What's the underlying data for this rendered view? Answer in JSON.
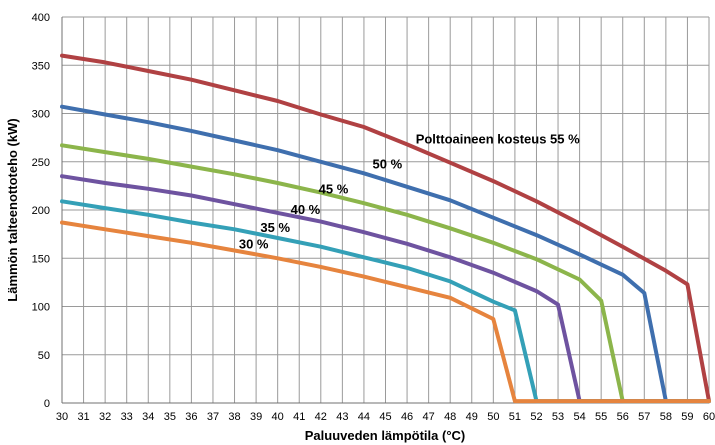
{
  "chart_data": {
    "type": "line",
    "xlabel": "Paluuveden lämpötila (°C)",
    "ylabel": "Lämmön talteenottoteho (kW)",
    "xlim": [
      30,
      60
    ],
    "ylim": [
      0,
      400
    ],
    "x_ticks": [
      "30",
      "31",
      "32",
      "33",
      "34",
      "35",
      "36",
      "37",
      "38",
      "39",
      "40",
      "41",
      "42",
      "43",
      "44",
      "45",
      "46",
      "47",
      "48",
      "49",
      "50",
      "51",
      "52",
      "53",
      "54",
      "55",
      "56",
      "57",
      "58",
      "59",
      "60"
    ],
    "y_ticks": [
      "0",
      "50",
      "100",
      "150",
      "200",
      "250",
      "300",
      "350",
      "400"
    ],
    "grid": true,
    "legend": "none",
    "series": [
      {
        "name": "Polttoaineen kosteus 55 %",
        "color": "#b04143",
        "points": [
          [
            30,
            360
          ],
          [
            32,
            353
          ],
          [
            34,
            344
          ],
          [
            36,
            335
          ],
          [
            38,
            324
          ],
          [
            40,
            313
          ],
          [
            42,
            299
          ],
          [
            44,
            286
          ],
          [
            46,
            268
          ],
          [
            48,
            249
          ],
          [
            50,
            230
          ],
          [
            52,
            209
          ],
          [
            54,
            186
          ],
          [
            56,
            162
          ],
          [
            58,
            137
          ],
          [
            59,
            123
          ],
          [
            60,
            2
          ]
        ]
      },
      {
        "name": "50 %",
        "color": "#3f6fae",
        "points": [
          [
            30,
            307
          ],
          [
            32,
            299
          ],
          [
            34,
            291
          ],
          [
            36,
            282
          ],
          [
            38,
            272
          ],
          [
            40,
            262
          ],
          [
            42,
            250
          ],
          [
            44,
            238
          ],
          [
            46,
            224
          ],
          [
            48,
            210
          ],
          [
            50,
            192
          ],
          [
            52,
            174
          ],
          [
            54,
            154
          ],
          [
            56,
            133
          ],
          [
            57,
            114
          ],
          [
            58,
            2
          ],
          [
            60,
            2
          ]
        ]
      },
      {
        "name": "45 %",
        "color": "#8cb54b",
        "points": [
          [
            30,
            267
          ],
          [
            32,
            260
          ],
          [
            34,
            253
          ],
          [
            36,
            245
          ],
          [
            38,
            237
          ],
          [
            40,
            228
          ],
          [
            42,
            218
          ],
          [
            44,
            207
          ],
          [
            46,
            195
          ],
          [
            48,
            181
          ],
          [
            50,
            166
          ],
          [
            52,
            149
          ],
          [
            54,
            128
          ],
          [
            55,
            106
          ],
          [
            56,
            2
          ],
          [
            60,
            2
          ]
        ]
      },
      {
        "name": "40 %",
        "color": "#6e53a0",
        "points": [
          [
            30,
            235
          ],
          [
            32,
            228
          ],
          [
            34,
            222
          ],
          [
            36,
            215
          ],
          [
            38,
            206
          ],
          [
            40,
            197
          ],
          [
            42,
            188
          ],
          [
            44,
            177
          ],
          [
            46,
            165
          ],
          [
            48,
            151
          ],
          [
            50,
            135
          ],
          [
            52,
            116
          ],
          [
            53,
            102
          ],
          [
            54,
            2
          ],
          [
            60,
            2
          ]
        ]
      },
      {
        "name": "35 %",
        "color": "#34a0b7",
        "points": [
          [
            30,
            209
          ],
          [
            32,
            202
          ],
          [
            34,
            195
          ],
          [
            36,
            187
          ],
          [
            38,
            180
          ],
          [
            40,
            171
          ],
          [
            42,
            162
          ],
          [
            44,
            151
          ],
          [
            46,
            140
          ],
          [
            48,
            126
          ],
          [
            50,
            105
          ],
          [
            51,
            96
          ],
          [
            52,
            2
          ],
          [
            60,
            2
          ]
        ]
      },
      {
        "name": "30 %",
        "color": "#e6843e",
        "points": [
          [
            30,
            187
          ],
          [
            32,
            180
          ],
          [
            34,
            173
          ],
          [
            36,
            166
          ],
          [
            38,
            158
          ],
          [
            40,
            150
          ],
          [
            42,
            141
          ],
          [
            44,
            131
          ],
          [
            46,
            120
          ],
          [
            48,
            109
          ],
          [
            50,
            87
          ],
          [
            51,
            2
          ],
          [
            60,
            2
          ]
        ]
      }
    ],
    "annotations": [
      {
        "text": "Polttoaineen kosteus 55 %",
        "x": 46.4,
        "y": 269
      },
      {
        "text": "50 %",
        "x": 44.4,
        "y": 243
      },
      {
        "text": "45 %",
        "x": 41.9,
        "y": 217
      },
      {
        "text": "40 %",
        "x": 40.6,
        "y": 196
      },
      {
        "text": "35 %",
        "x": 39.2,
        "y": 177
      },
      {
        "text": "30 %",
        "x": 38.2,
        "y": 160
      }
    ]
  }
}
